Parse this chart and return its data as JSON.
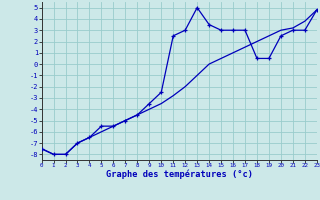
{
  "xlabel": "Graphe des températures (°c)",
  "background_color": "#cce8e8",
  "grid_color": "#99cccc",
  "line_color": "#0000bb",
  "xlim": [
    0,
    23
  ],
  "ylim": [
    -8.5,
    5.5
  ],
  "xticks": [
    0,
    1,
    2,
    3,
    4,
    5,
    6,
    7,
    8,
    9,
    10,
    11,
    12,
    13,
    14,
    15,
    16,
    17,
    18,
    19,
    20,
    21,
    22,
    23
  ],
  "yticks": [
    -8,
    -7,
    -6,
    -5,
    -4,
    -3,
    -2,
    -1,
    0,
    1,
    2,
    3,
    4,
    5
  ],
  "series1_x": [
    0,
    1,
    2,
    3,
    4,
    5,
    6,
    7,
    8,
    9,
    10,
    11,
    12,
    13,
    14,
    15,
    16,
    17,
    18,
    19,
    20,
    21,
    22,
    23
  ],
  "series1_y": [
    -7.5,
    -8.0,
    -8.0,
    -7.0,
    -6.5,
    -5.5,
    -5.5,
    -5.0,
    -4.5,
    -3.5,
    -2.5,
    2.5,
    3.0,
    5.0,
    3.5,
    3.0,
    3.0,
    3.0,
    0.5,
    0.5,
    2.5,
    3.0,
    3.0,
    4.8
  ],
  "series2_x": [
    0,
    1,
    2,
    3,
    4,
    5,
    6,
    7,
    8,
    9,
    10,
    11,
    12,
    13,
    14,
    15,
    16,
    17,
    18,
    19,
    20,
    21,
    22,
    23
  ],
  "series2_y": [
    -7.5,
    -8.0,
    -8.0,
    -7.0,
    -6.5,
    -6.0,
    -5.5,
    -5.0,
    -4.5,
    -4.0,
    -3.5,
    -2.8,
    -2.0,
    -1.0,
    0.0,
    0.5,
    1.0,
    1.5,
    2.0,
    2.5,
    3.0,
    3.2,
    3.8,
    4.8
  ]
}
